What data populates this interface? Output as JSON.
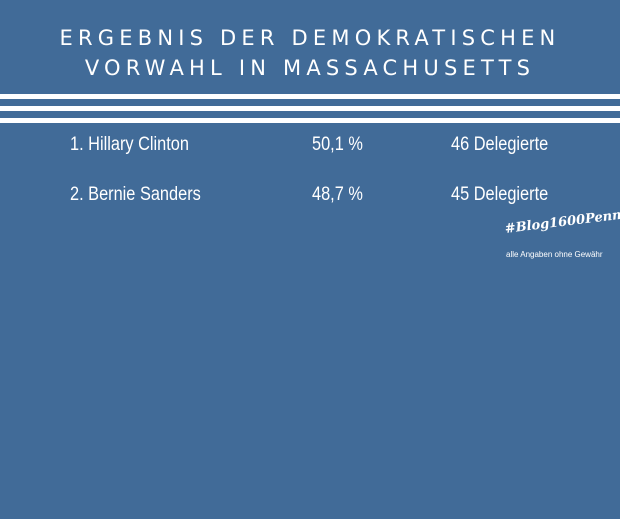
{
  "title": {
    "line1": "ERGEBNIS DER DEMOKRATISCHEN",
    "line2": "VORWAHL IN MASSACHUSETTS"
  },
  "results": [
    {
      "rank_name": "1.  Hillary Clinton",
      "percent": "50,1 %",
      "delegates": "46 Delegierte"
    },
    {
      "rank_name": "2.  Bernie Sanders",
      "percent": "48,7 %",
      "delegates": "45 Delegierte"
    }
  ],
  "hashtag": "#Blog1600Penn",
  "disclaimer": "alle Angaben ohne Gewähr",
  "colors": {
    "background": "#416b98",
    "text": "#ffffff"
  }
}
